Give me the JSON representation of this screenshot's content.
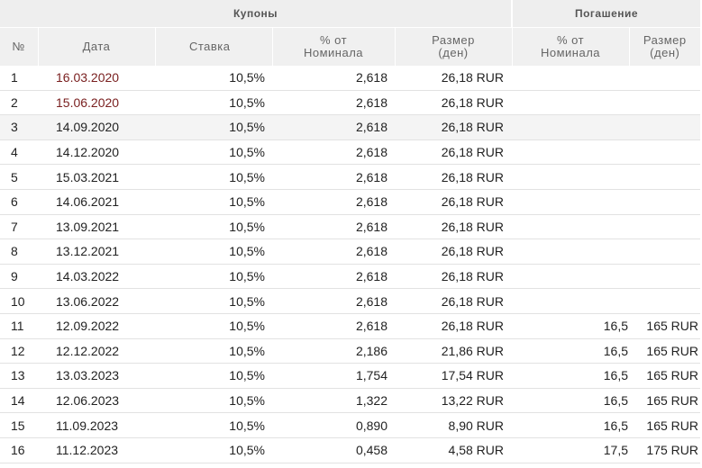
{
  "header": {
    "coupons": "Купоны",
    "redemption": "Погашение",
    "col_num": "№",
    "col_date": "Дата",
    "col_rate": "Ставка",
    "col_pct_line1": "% от",
    "col_pct_line2": "Номинала",
    "col_size_line1": "Размер",
    "col_size_line2": "(ден)",
    "col_rpct_line1": "% от",
    "col_rpct_line2": "Номинала",
    "col_rsize_line1": "Размер",
    "col_rsize_line2": "(ден)"
  },
  "colors": {
    "past_date": "#7a2020",
    "header_bg": "#eeeeee",
    "row_shade": "#f4f4f4"
  },
  "rows": [
    {
      "num": "1",
      "date": "16.03.2020",
      "rate": "10,5%",
      "pct": "2,618",
      "size": "26,18 RUR",
      "rpct": "",
      "rsize": "",
      "past": true
    },
    {
      "num": "2",
      "date": "15.06.2020",
      "rate": "10,5%",
      "pct": "2,618",
      "size": "26,18 RUR",
      "rpct": "",
      "rsize": "",
      "past": true
    },
    {
      "num": "3",
      "date": "14.09.2020",
      "rate": "10,5%",
      "pct": "2,618",
      "size": "26,18 RUR",
      "rpct": "",
      "rsize": "",
      "past": false
    },
    {
      "num": "4",
      "date": "14.12.2020",
      "rate": "10,5%",
      "pct": "2,618",
      "size": "26,18 RUR",
      "rpct": "",
      "rsize": "",
      "past": false
    },
    {
      "num": "5",
      "date": "15.03.2021",
      "rate": "10,5%",
      "pct": "2,618",
      "size": "26,18 RUR",
      "rpct": "",
      "rsize": "",
      "past": false
    },
    {
      "num": "6",
      "date": "14.06.2021",
      "rate": "10,5%",
      "pct": "2,618",
      "size": "26,18 RUR",
      "rpct": "",
      "rsize": "",
      "past": false
    },
    {
      "num": "7",
      "date": "13.09.2021",
      "rate": "10,5%",
      "pct": "2,618",
      "size": "26,18 RUR",
      "rpct": "",
      "rsize": "",
      "past": false
    },
    {
      "num": "8",
      "date": "13.12.2021",
      "rate": "10,5%",
      "pct": "2,618",
      "size": "26,18 RUR",
      "rpct": "",
      "rsize": "",
      "past": false
    },
    {
      "num": "9",
      "date": "14.03.2022",
      "rate": "10,5%",
      "pct": "2,618",
      "size": "26,18 RUR",
      "rpct": "",
      "rsize": "",
      "past": false
    },
    {
      "num": "10",
      "date": "13.06.2022",
      "rate": "10,5%",
      "pct": "2,618",
      "size": "26,18 RUR",
      "rpct": "",
      "rsize": "",
      "past": false
    },
    {
      "num": "11",
      "date": "12.09.2022",
      "rate": "10,5%",
      "pct": "2,618",
      "size": "26,18 RUR",
      "rpct": "16,5",
      "rsize": "165 RUR",
      "past": false
    },
    {
      "num": "12",
      "date": "12.12.2022",
      "rate": "10,5%",
      "pct": "2,186",
      "size": "21,86 RUR",
      "rpct": "16,5",
      "rsize": "165 RUR",
      "past": false
    },
    {
      "num": "13",
      "date": "13.03.2023",
      "rate": "10,5%",
      "pct": "1,754",
      "size": "17,54 RUR",
      "rpct": "16,5",
      "rsize": "165 RUR",
      "past": false
    },
    {
      "num": "14",
      "date": "12.06.2023",
      "rate": "10,5%",
      "pct": "1,322",
      "size": "13,22 RUR",
      "rpct": "16,5",
      "rsize": "165 RUR",
      "past": false
    },
    {
      "num": "15",
      "date": "11.09.2023",
      "rate": "10,5%",
      "pct": "0,890",
      "size": "8,90 RUR",
      "rpct": "16,5",
      "rsize": "165 RUR",
      "past": false
    },
    {
      "num": "16",
      "date": "11.12.2023",
      "rate": "10,5%",
      "pct": "0,458",
      "size": "4,58 RUR",
      "rpct": "17,5",
      "rsize": "175 RUR",
      "past": false
    }
  ]
}
